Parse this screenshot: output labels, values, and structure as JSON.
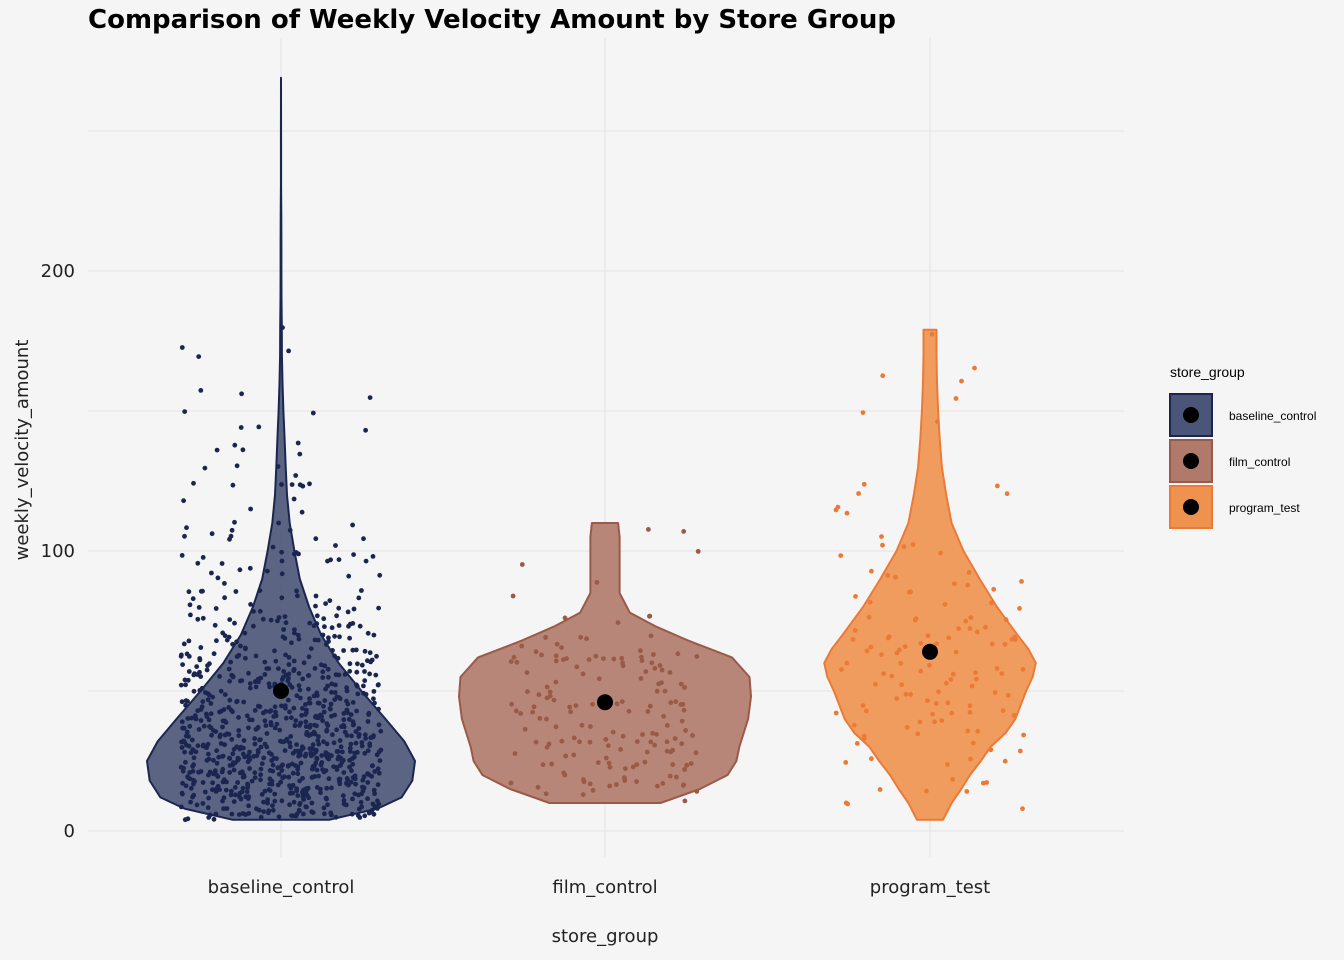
{
  "chart_data": {
    "type": "violin",
    "title": "Comparison of Weekly Velocity Amount by Store Group",
    "xlabel": "store_group",
    "ylabel": "weekly_velocity_amount",
    "categories": [
      "baseline_control",
      "film_control",
      "program_test"
    ],
    "yticks": [
      0,
      100,
      200
    ],
    "ylim": [
      -5,
      265
    ],
    "grid": true,
    "legend": {
      "title": "store_group",
      "placement": "right",
      "entries": [
        "baseline_control",
        "film_control",
        "program_test"
      ]
    },
    "colors": {
      "baseline_control": {
        "fill": "#4a5577",
        "stroke": "#1b2650",
        "point": "#1b2650"
      },
      "film_control": {
        "fill": "#b07a6a",
        "stroke": "#9a5a48",
        "point": "#9a5a48"
      },
      "program_test": {
        "fill": "#f0924f",
        "stroke": "#ec7a37",
        "point": "#ec7a37"
      }
    },
    "series": [
      {
        "name": "baseline_control",
        "min": 4,
        "max": 269,
        "mean": 50,
        "point_count": 900,
        "density_profile": [
          [
            4,
            0.36
          ],
          [
            8,
            0.72
          ],
          [
            12,
            0.9
          ],
          [
            18,
            0.98
          ],
          [
            25,
            1.0
          ],
          [
            32,
            0.92
          ],
          [
            40,
            0.78
          ],
          [
            50,
            0.6
          ],
          [
            60,
            0.43
          ],
          [
            70,
            0.3
          ],
          [
            80,
            0.21
          ],
          [
            90,
            0.14
          ],
          [
            100,
            0.1
          ],
          [
            110,
            0.065
          ],
          [
            120,
            0.045
          ],
          [
            130,
            0.035
          ],
          [
            140,
            0.027
          ],
          [
            150,
            0.018
          ],
          [
            160,
            0.011
          ],
          [
            170,
            0.007
          ],
          [
            180,
            0.006
          ],
          [
            190,
            0.004
          ],
          [
            200,
            0.003
          ],
          [
            210,
            0.003
          ],
          [
            220,
            0.002
          ],
          [
            230,
            0.001
          ],
          [
            245,
            0.001
          ],
          [
            269,
            0.0
          ]
        ]
      },
      {
        "name": "film_control",
        "min": 10,
        "max": 110,
        "mean": 46,
        "point_count": 160,
        "density_profile": [
          [
            10,
            0.38
          ],
          [
            15,
            0.65
          ],
          [
            20,
            0.84
          ],
          [
            25,
            0.9
          ],
          [
            30,
            0.92
          ],
          [
            35,
            0.95
          ],
          [
            40,
            0.98
          ],
          [
            48,
            1.0
          ],
          [
            55,
            0.99
          ],
          [
            62,
            0.87
          ],
          [
            68,
            0.57
          ],
          [
            73,
            0.35
          ],
          [
            78,
            0.17
          ],
          [
            85,
            0.1
          ],
          [
            95,
            0.1
          ],
          [
            100,
            0.1
          ],
          [
            105,
            0.1
          ],
          [
            110,
            0.09
          ]
        ]
      },
      {
        "name": "program_test",
        "min": 4,
        "max": 179,
        "mean": 64,
        "point_count": 130,
        "density_profile": [
          [
            4,
            0.12
          ],
          [
            10,
            0.2
          ],
          [
            15,
            0.29
          ],
          [
            20,
            0.37
          ],
          [
            25,
            0.47
          ],
          [
            30,
            0.56
          ],
          [
            35,
            0.7
          ],
          [
            40,
            0.79
          ],
          [
            45,
            0.84
          ],
          [
            50,
            0.89
          ],
          [
            55,
            0.95
          ],
          [
            60,
            0.98
          ],
          [
            65,
            0.91
          ],
          [
            70,
            0.81
          ],
          [
            80,
            0.62
          ],
          [
            90,
            0.46
          ],
          [
            100,
            0.31
          ],
          [
            110,
            0.2
          ],
          [
            120,
            0.15
          ],
          [
            130,
            0.11
          ],
          [
            140,
            0.09
          ],
          [
            150,
            0.075
          ],
          [
            160,
            0.065
          ],
          [
            170,
            0.06
          ],
          [
            179,
            0.06
          ]
        ]
      }
    ]
  }
}
